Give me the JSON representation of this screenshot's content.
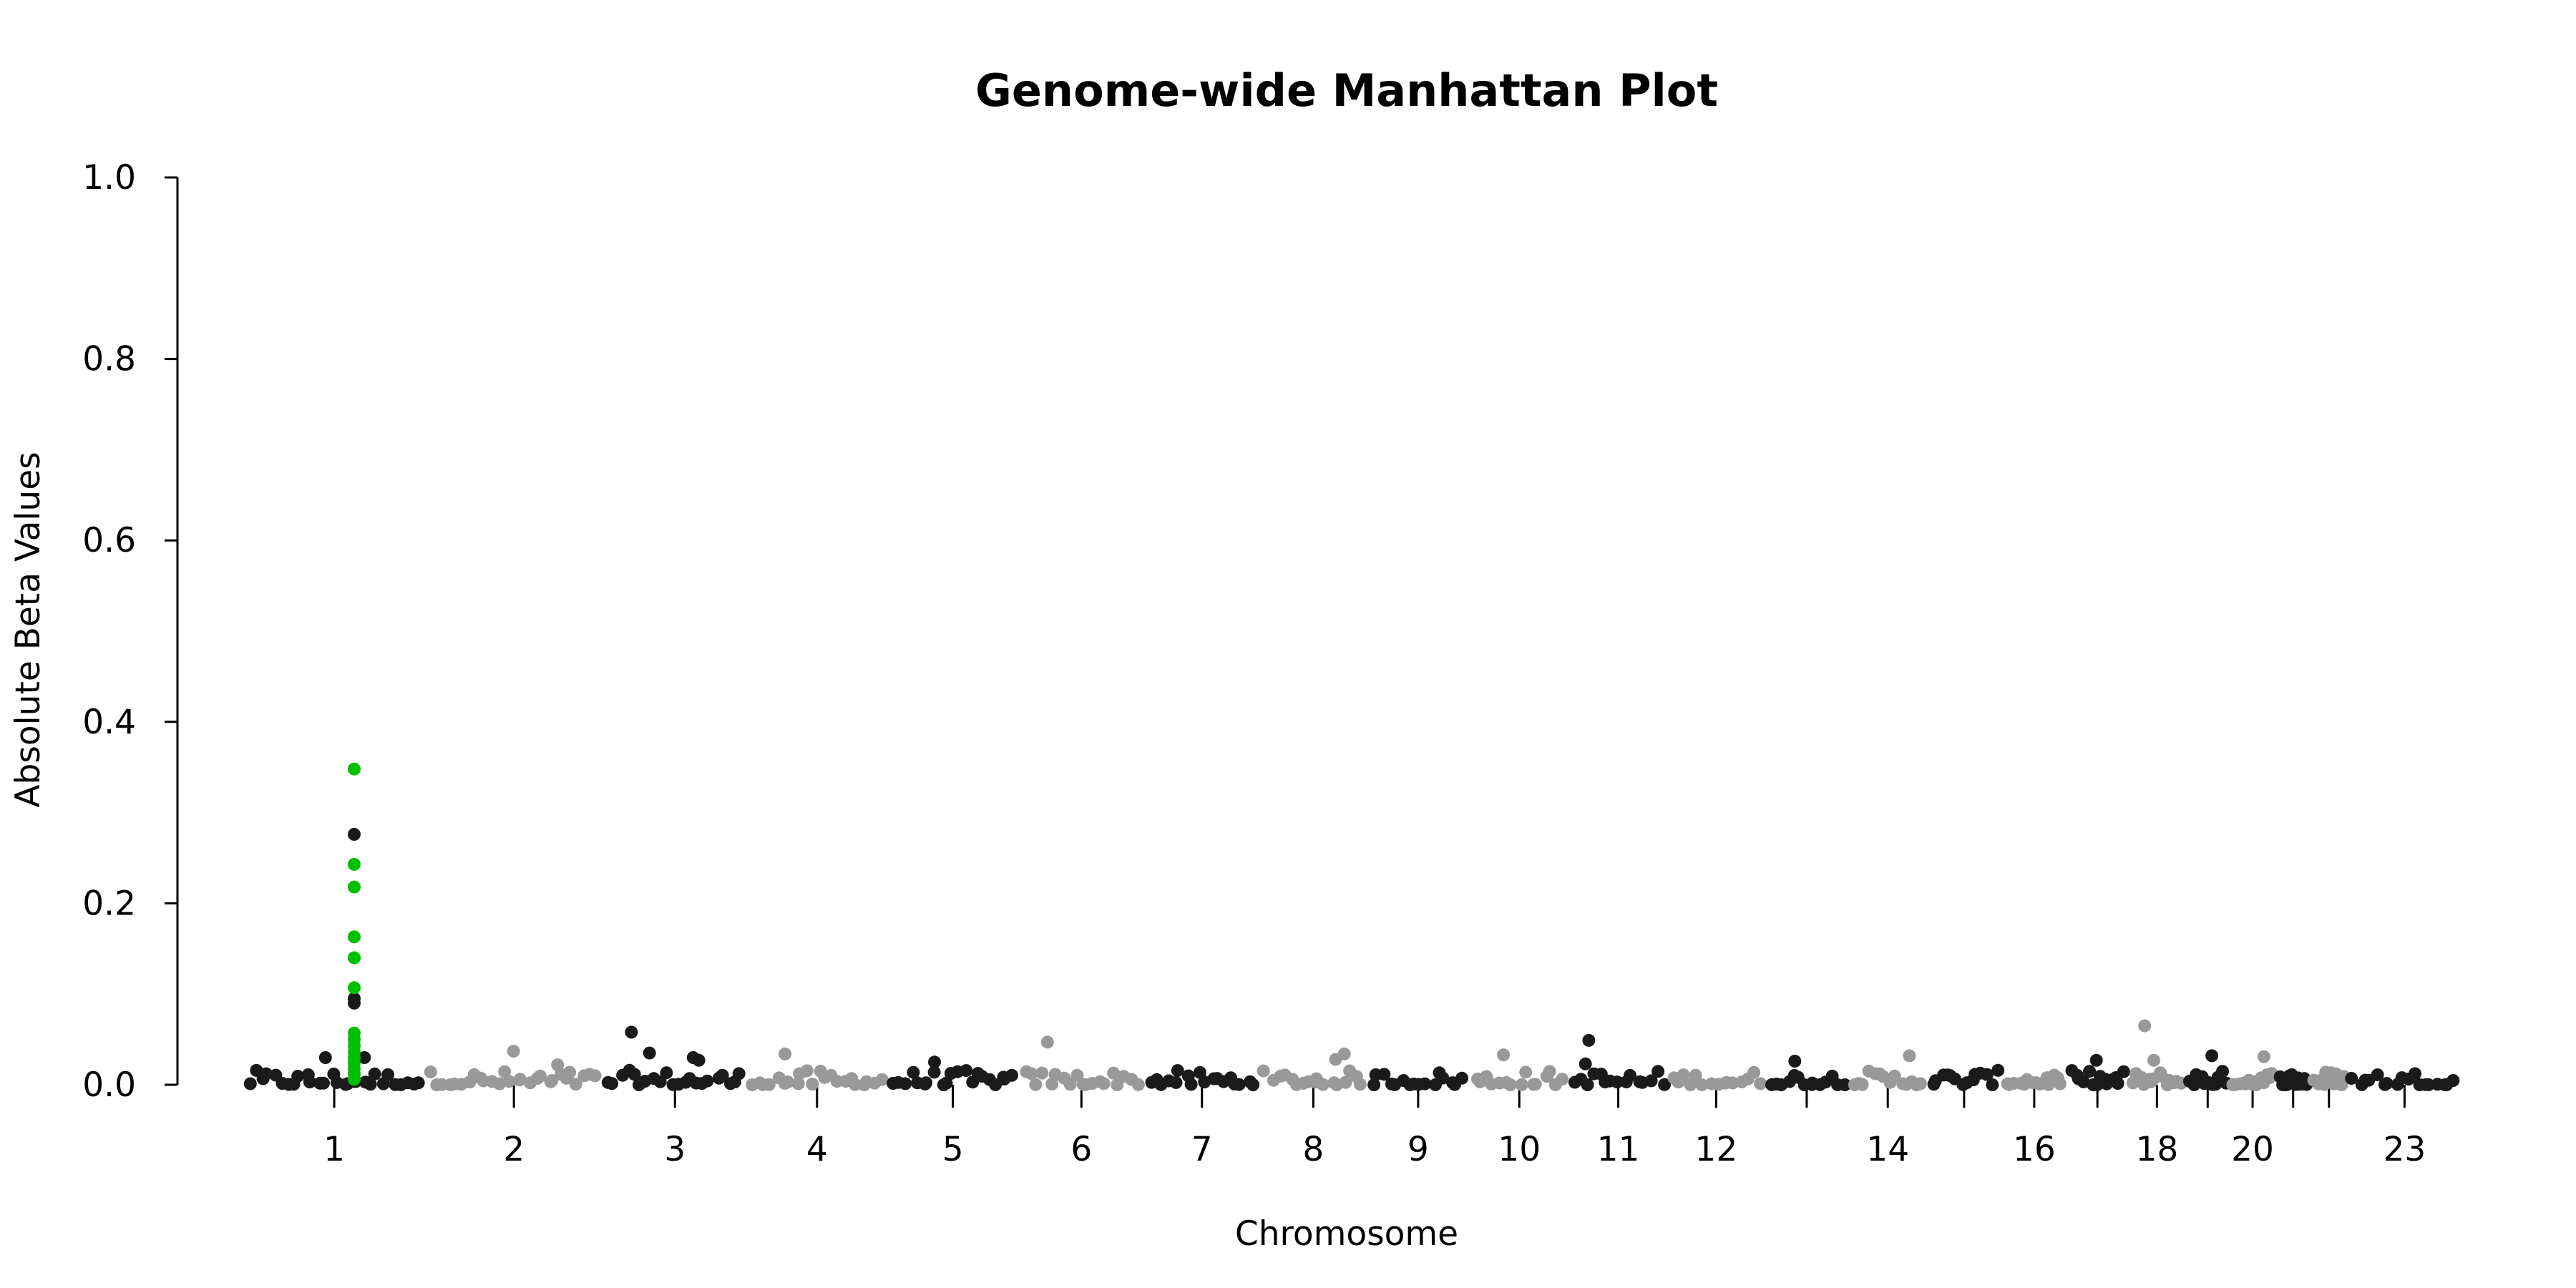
{
  "chart_data": {
    "type": "scatter",
    "title": "Genome-wide Manhattan Plot",
    "xlabel": "Chromosome",
    "ylabel": "Absolute Beta Values",
    "ylim": [
      0,
      1.0
    ],
    "y_ticks": [
      "0.0",
      "0.2",
      "0.4",
      "0.6",
      "0.8",
      "1.0"
    ],
    "x_tick_labels": [
      "1",
      "2",
      "3",
      "4",
      "5",
      "6",
      "7",
      "8",
      "9",
      "10",
      "11",
      "12",
      "14",
      "16",
      "18",
      "20",
      "23"
    ],
    "chromosomes": [
      "1",
      "2",
      "3",
      "4",
      "5",
      "6",
      "7",
      "8",
      "9",
      "10",
      "11",
      "12",
      "13",
      "14",
      "15",
      "16",
      "17",
      "18",
      "19",
      "20",
      "21",
      "22",
      "23"
    ],
    "grid": false,
    "colors": {
      "odd": "#1a1a1a",
      "even": "#999999",
      "highlight": "#00c000"
    },
    "peak": {
      "chromosome": "1",
      "highlighted_values": [
        0.348,
        0.243,
        0.218,
        0.163,
        0.14,
        0.107,
        0.057,
        0.05,
        0.043,
        0.036,
        0.03,
        0.024,
        0.018,
        0.012,
        0.006
      ],
      "other_values": [
        0.276,
        0.095,
        0.09
      ]
    },
    "notable_points": [
      {
        "chromosome": "1",
        "y": 0.03
      },
      {
        "chromosome": "1",
        "y": 0.03
      },
      {
        "chromosome": "2",
        "y": 0.022
      },
      {
        "chromosome": "2",
        "y": 0.037
      },
      {
        "chromosome": "3",
        "y": 0.03
      },
      {
        "chromosome": "3",
        "y": 0.035
      },
      {
        "chromosome": "3",
        "y": 0.058
      },
      {
        "chromosome": "3",
        "y": 0.027
      },
      {
        "chromosome": "4",
        "y": 0.034
      },
      {
        "chromosome": "5",
        "y": 0.025
      },
      {
        "chromosome": "6",
        "y": 0.047
      },
      {
        "chromosome": "8",
        "y": 0.028
      },
      {
        "chromosome": "8",
        "y": 0.034
      },
      {
        "chromosome": "10",
        "y": 0.033
      },
      {
        "chromosome": "11",
        "y": 0.049
      },
      {
        "chromosome": "11",
        "y": 0.023
      },
      {
        "chromosome": "13",
        "y": 0.026
      },
      {
        "chromosome": "14",
        "y": 0.032
      },
      {
        "chromosome": "17",
        "y": 0.027
      },
      {
        "chromosome": "18",
        "y": 0.065
      },
      {
        "chromosome": "18",
        "y": 0.027
      },
      {
        "chromosome": "19",
        "y": 0.032
      },
      {
        "chromosome": "20",
        "y": 0.031
      }
    ]
  }
}
